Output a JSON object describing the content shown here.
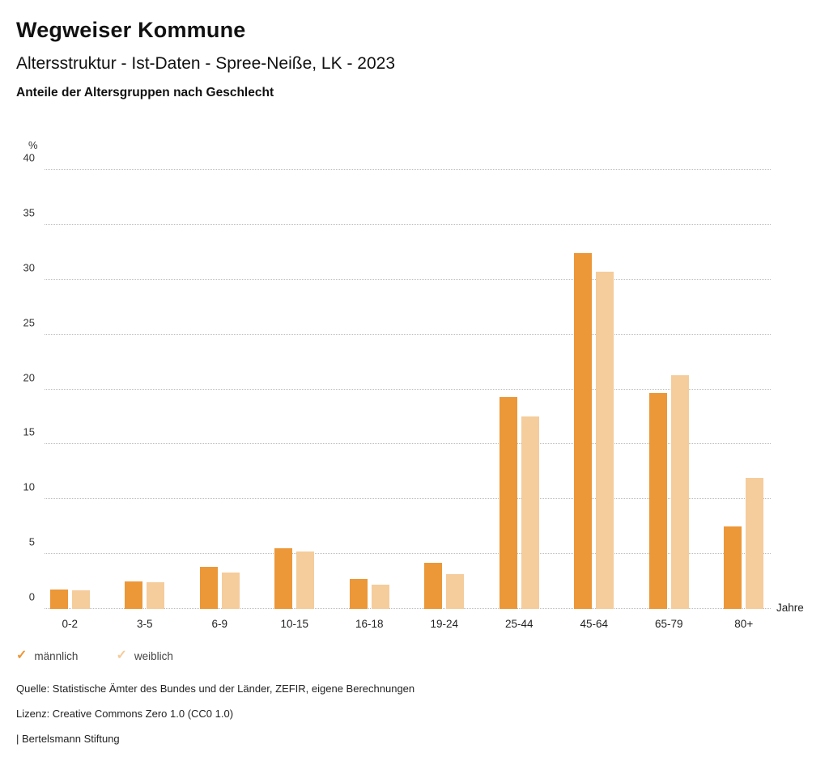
{
  "header": {
    "title": "Wegweiser Kommune",
    "subtitle": "Altersstruktur - Ist-Daten - Spree-Neiße, LK - 2023",
    "heading": "Anteile der Altersgruppen nach Geschlecht"
  },
  "chart_data": {
    "type": "bar",
    "title": "Anteile der Altersgruppen nach Geschlecht",
    "categories": [
      "0-2",
      "3-5",
      "6-9",
      "10-15",
      "16-18",
      "19-24",
      "25-44",
      "45-64",
      "65-79",
      "80+"
    ],
    "series": [
      {
        "name": "männlich",
        "color": "#ec9738",
        "values": [
          1.8,
          2.5,
          3.8,
          5.5,
          2.7,
          4.2,
          19.3,
          32.4,
          19.7,
          7.5
        ]
      },
      {
        "name": "weiblich",
        "color": "#f5cc9b",
        "values": [
          1.7,
          2.4,
          3.3,
          5.2,
          2.2,
          3.2,
          17.5,
          30.7,
          21.3,
          11.9
        ]
      }
    ],
    "xlabel": "Jahre",
    "ylabel": "%",
    "ylim": [
      0,
      40
    ],
    "ytick_step": 5,
    "grid": "horizontal-dotted",
    "legend_position": "bottom-left",
    "legend_icon": "check"
  },
  "footer": {
    "source": "Quelle: Statistische Ämter des Bundes und der Länder, ZEFIR, eigene Berechnungen",
    "license": "Lizenz: Creative Commons Zero 1.0 (CC0 1.0)",
    "publisher": "| Bertelsmann Stiftung"
  }
}
